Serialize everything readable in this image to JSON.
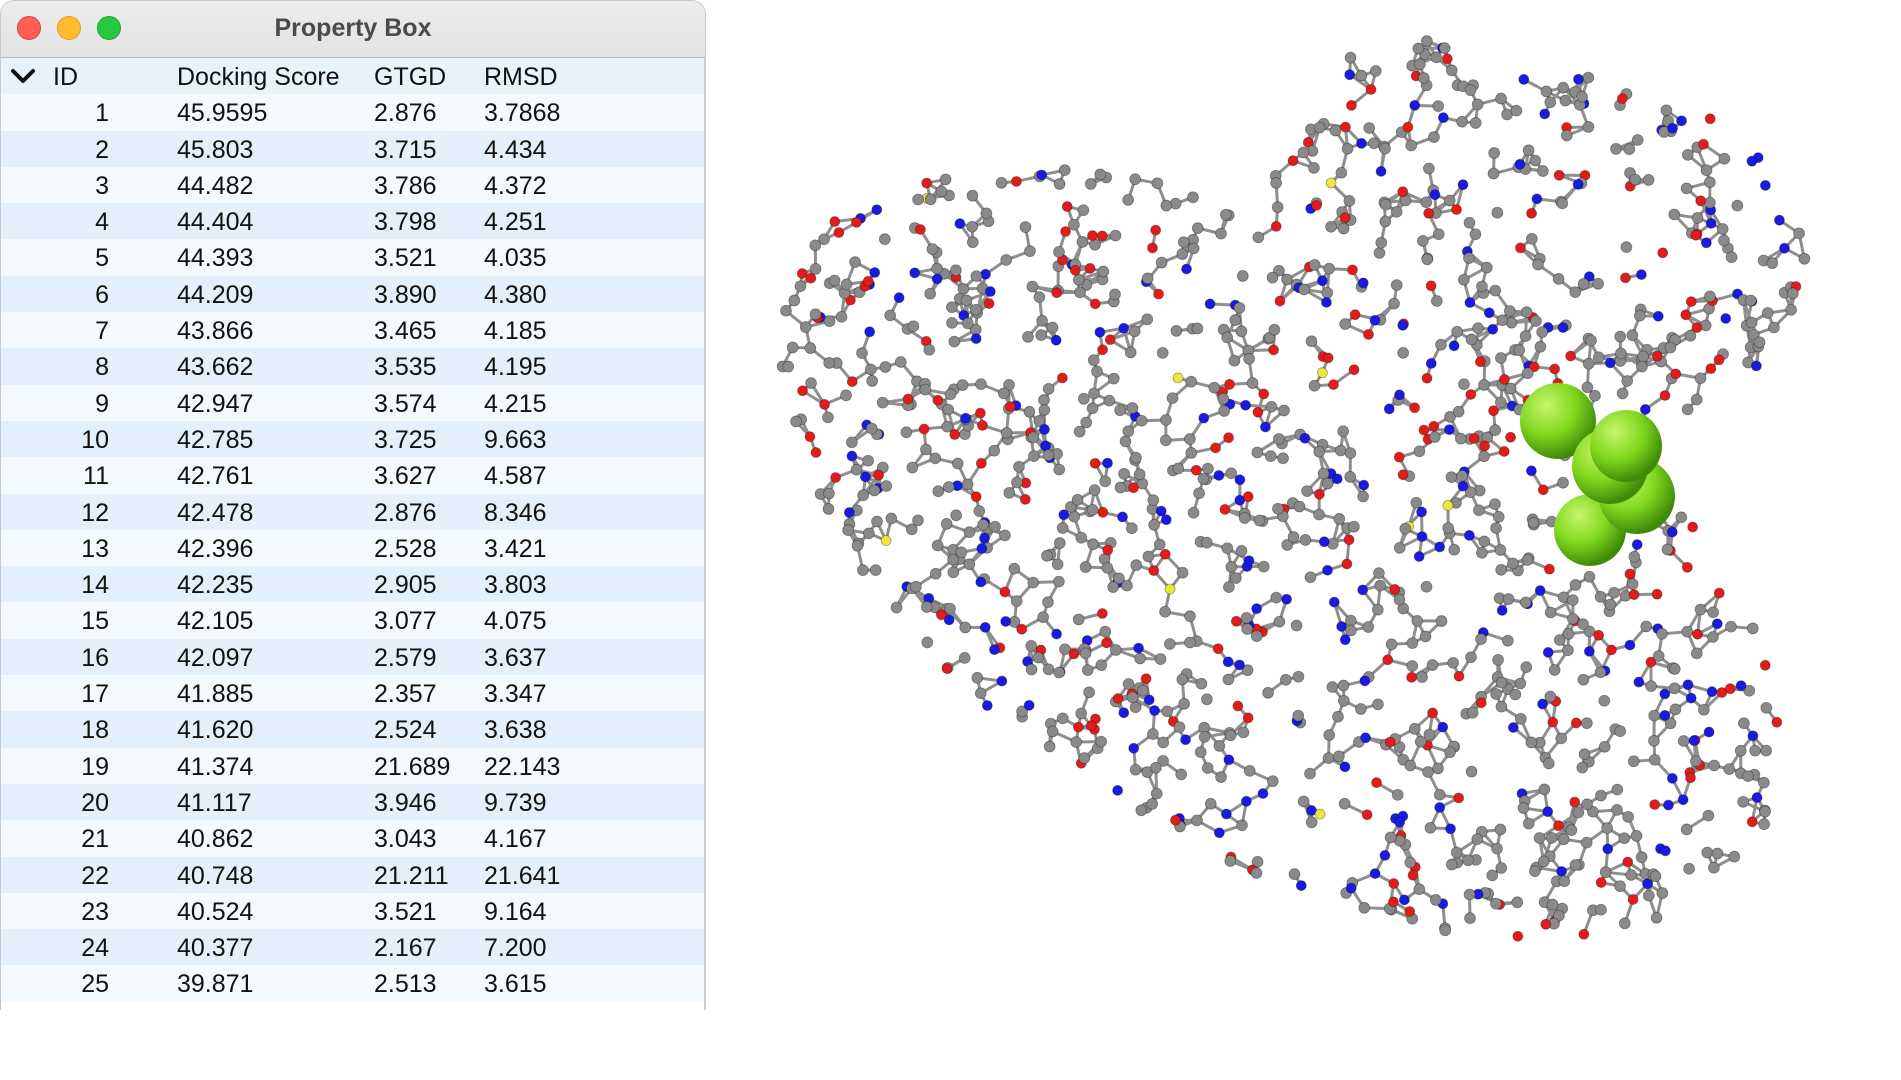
{
  "window": {
    "title": "Property Box"
  },
  "table": {
    "columns": [
      "ID",
      "Docking Score",
      "GTGD",
      "RMSD"
    ],
    "rows": [
      [
        "1",
        "45.9595",
        "2.876",
        "3.7868"
      ],
      [
        "2",
        "45.803",
        "3.715",
        "4.434"
      ],
      [
        "3",
        "44.482",
        "3.786",
        "4.372"
      ],
      [
        "4",
        "44.404",
        "3.798",
        "4.251"
      ],
      [
        "5",
        "44.393",
        "3.521",
        "4.035"
      ],
      [
        "6",
        "44.209",
        "3.890",
        "4.380"
      ],
      [
        "7",
        "43.866",
        "3.465",
        "4.185"
      ],
      [
        "8",
        "43.662",
        "3.535",
        "4.195"
      ],
      [
        "9",
        "42.947",
        "3.574",
        "4.215"
      ],
      [
        "10",
        "42.785",
        "3.725",
        "9.663"
      ],
      [
        "11",
        "42.761",
        "3.627",
        "4.587"
      ],
      [
        "12",
        "42.478",
        "2.876",
        "8.346"
      ],
      [
        "13",
        "42.396",
        "2.528",
        "3.421"
      ],
      [
        "14",
        "42.235",
        "2.905",
        "3.803"
      ],
      [
        "15",
        "42.105",
        "3.077",
        "4.075"
      ],
      [
        "16",
        "42.097",
        "2.579",
        "3.637"
      ],
      [
        "17",
        "41.885",
        "2.357",
        "3.347"
      ],
      [
        "18",
        "41.620",
        "2.524",
        "3.638"
      ],
      [
        "19",
        "41.374",
        "21.689",
        "22.143"
      ],
      [
        "20",
        "41.117",
        "3.946",
        "9.739"
      ],
      [
        "21",
        "40.862",
        "3.043",
        "4.167"
      ],
      [
        "22",
        "40.748",
        "21.211",
        "21.641"
      ],
      [
        "23",
        "40.524",
        "3.521",
        "9.164"
      ],
      [
        "24",
        "40.377",
        "2.167",
        "7.200"
      ],
      [
        "25",
        "39.871",
        "2.513",
        "3.615"
      ]
    ]
  },
  "viewer": {
    "icon": "ball-and-stick-protein",
    "colors": {
      "carbon": "#8a8a8a",
      "oxygen": "#e21b1b",
      "nitrogen": "#1a1ae0",
      "sulfur": "#e8e83a",
      "ligand": "#7fd81e"
    }
  }
}
